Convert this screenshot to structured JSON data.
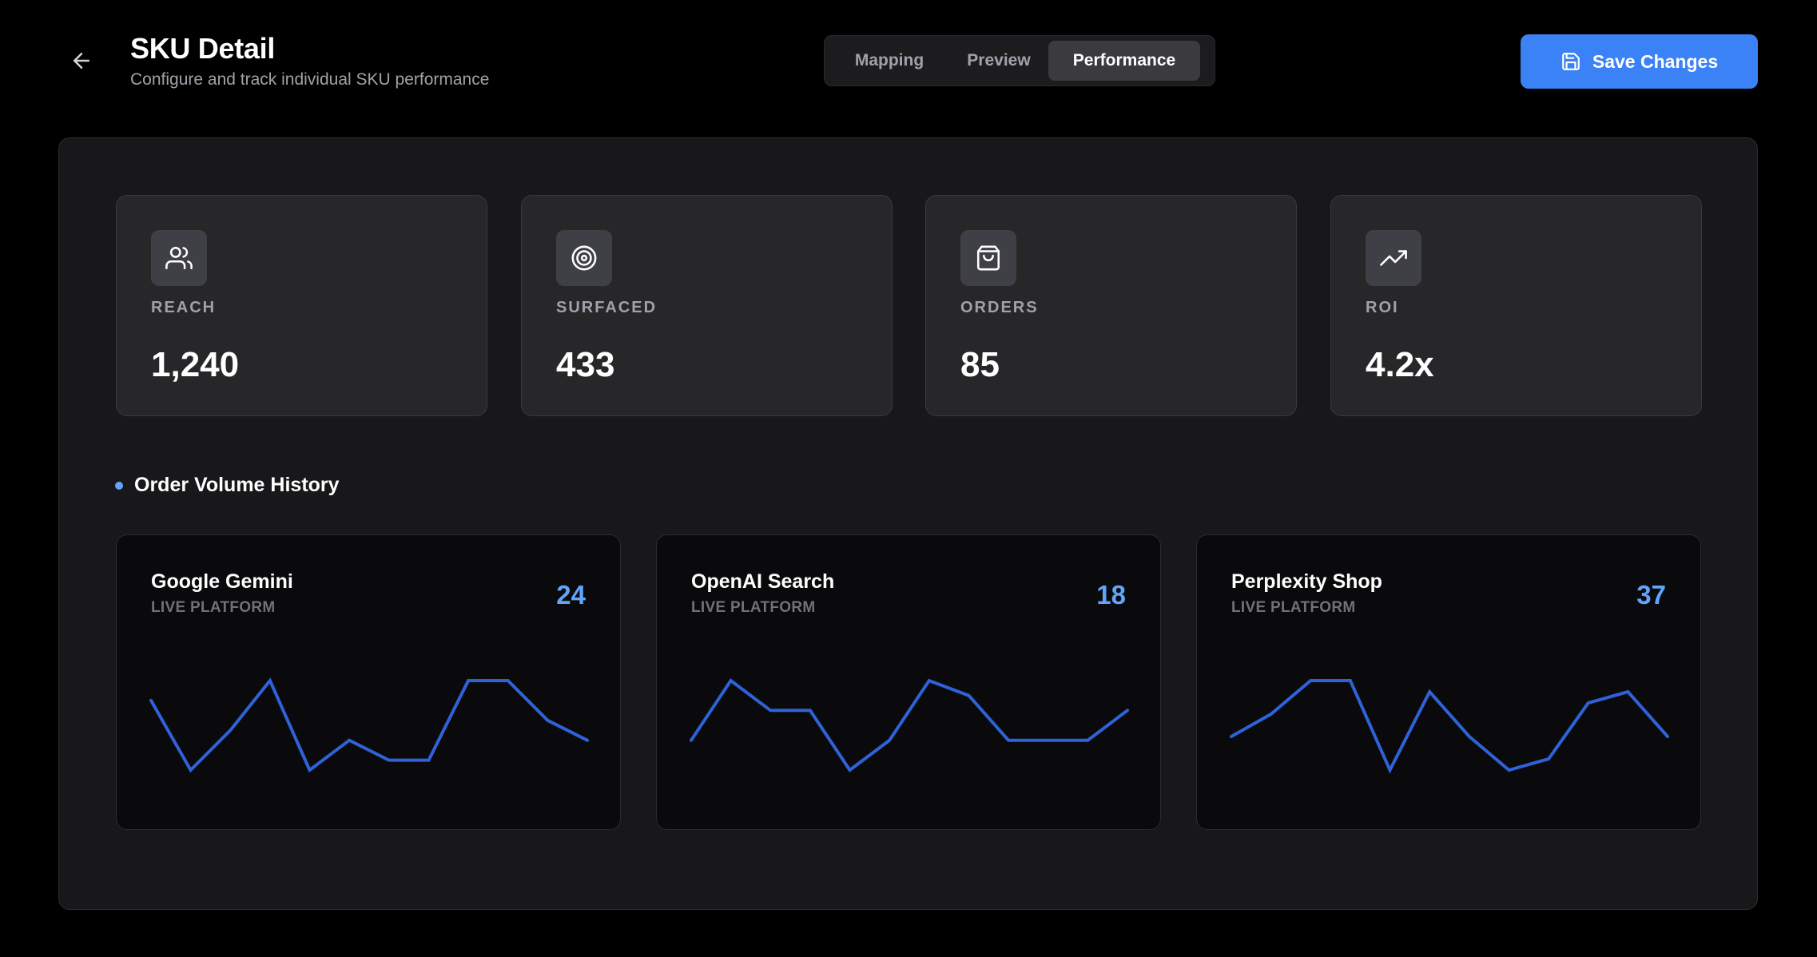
{
  "header": {
    "title": "SKU Detail",
    "subtitle": "Configure and track individual SKU performance",
    "tabs": [
      {
        "label": "Mapping",
        "active": false
      },
      {
        "label": "Preview",
        "active": false
      },
      {
        "label": "Performance",
        "active": true
      }
    ],
    "save_label": "Save Changes"
  },
  "stats": [
    {
      "icon": "users-icon",
      "label": "REACH",
      "value": "1,240"
    },
    {
      "icon": "target-icon",
      "label": "SURFACED",
      "value": "433"
    },
    {
      "icon": "shopping-bag-icon",
      "label": "ORDERS",
      "value": "85"
    },
    {
      "icon": "trending-up-icon",
      "label": "ROI",
      "value": "4.2x"
    }
  ],
  "section": {
    "title": "Order Volume History"
  },
  "colors": {
    "accent": "#3b82f6",
    "line": "#2f62d8",
    "count": "#60a5fa"
  },
  "chart_data": [
    {
      "type": "line",
      "title": "Google Gemini",
      "subtitle": "LIVE PLATFORM",
      "total": "24",
      "series": [
        {
          "values": [
            15,
            8,
            12,
            17,
            8,
            11,
            9,
            9,
            17,
            17,
            13,
            11
          ]
        }
      ],
      "ylim": [
        8,
        17
      ]
    },
    {
      "type": "line",
      "title": "OpenAI Search",
      "subtitle": "LIVE PLATFORM",
      "total": "18",
      "series": [
        {
          "values": [
            11,
            15,
            13,
            13,
            9,
            11,
            15,
            14,
            11,
            11,
            11,
            13
          ]
        }
      ],
      "ylim": [
        9,
        15
      ]
    },
    {
      "type": "line",
      "title": "Perplexity Shop",
      "subtitle": "LIVE PLATFORM",
      "total": "37",
      "series": [
        {
          "values": [
            11,
            13,
            16,
            16,
            8,
            15,
            11,
            8,
            9,
            14,
            15,
            11
          ]
        }
      ],
      "ylim": [
        8,
        16
      ]
    }
  ]
}
